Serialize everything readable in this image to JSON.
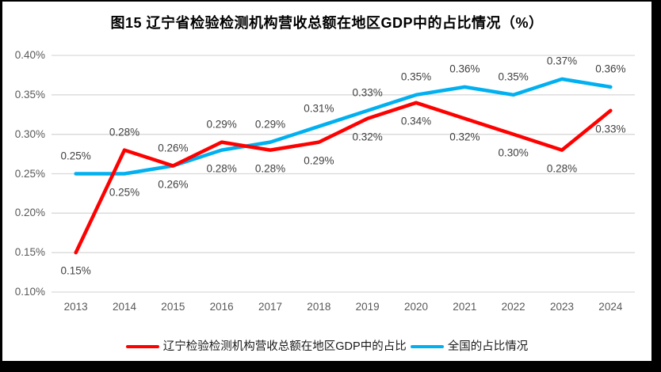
{
  "title": "图15 辽宁省检验检测机构营收总额在地区GDP中的占比情况（%）",
  "chart_data": {
    "type": "line",
    "title": "图15 辽宁省检验检测机构营收总额在地区GDP中的占比情况（%）",
    "categories": [
      "2013",
      "2014",
      "2015",
      "2016",
      "2017",
      "2018",
      "2019",
      "2020",
      "2021",
      "2022",
      "2023",
      "2024"
    ],
    "series": [
      {
        "key": "liaoning",
        "name": "辽宁检验检测机构营收总额在地区GDP中的占比",
        "color": "#ff0000",
        "values": [
          0.15,
          0.28,
          0.26,
          0.29,
          0.28,
          0.29,
          0.32,
          0.34,
          0.32,
          0.3,
          0.28,
          0.33
        ],
        "point_labels": [
          "0.15%",
          "0.28%",
          "0.26%",
          "0.29%",
          "0.28%",
          "0.29%",
          "0.32%",
          "0.34%",
          "0.32%",
          "0.30%",
          "0.28%",
          "0.33%"
        ],
        "label_positions": [
          "below",
          "above",
          "above",
          "above",
          "below",
          "below",
          "below",
          "below",
          "below",
          "below",
          "below",
          "below"
        ]
      },
      {
        "key": "national",
        "name": "全国的占比情况",
        "color": "#00b0f0",
        "values": [
          0.25,
          0.25,
          0.26,
          0.28,
          0.29,
          0.31,
          0.33,
          0.35,
          0.36,
          0.35,
          0.37,
          0.36
        ],
        "point_labels": [
          "0.25%",
          "0.25%",
          "0.26%",
          "0.28%",
          "0.29%",
          "0.31%",
          "0.33%",
          "0.35%",
          "0.36%",
          "0.35%",
          "0.37%",
          "0.36%"
        ],
        "label_positions": [
          "above",
          "below",
          "below",
          "below",
          "above",
          "above",
          "above",
          "above",
          "above",
          "above",
          "above",
          "above"
        ]
      }
    ],
    "y_axis": {
      "min": 0.1,
      "max": 0.4,
      "tick_step": 0.05,
      "tick_labels": [
        "0.40%",
        "0.35%",
        "0.30%",
        "0.25%",
        "0.20%",
        "0.15%",
        "0.10%"
      ],
      "format": "percent_2dp"
    },
    "x_axis": {
      "label": "",
      "tick_labels": [
        "2013",
        "2014",
        "2015",
        "2016",
        "2017",
        "2018",
        "2019",
        "2020",
        "2021",
        "2022",
        "2023",
        "2024"
      ]
    },
    "grid": "horizontal",
    "data_labels": "all_points",
    "legend_position": "bottom"
  },
  "legend": {
    "items": [
      {
        "key": "liaoning",
        "label": "辽宁检验检测机构营收总额在地区GDP中的占比",
        "color": "#ff0000"
      },
      {
        "key": "national",
        "label": "全国的占比情况",
        "color": "#00b0f0"
      }
    ]
  },
  "colors": {
    "series_liaoning": "#ff0000",
    "series_national": "#00b0f0",
    "gridline": "#d9d9d9",
    "axis_text": "#595959",
    "data_label_text": "#404040",
    "title_text": "#000000",
    "background": "#ffffff",
    "frame": "#000000"
  }
}
